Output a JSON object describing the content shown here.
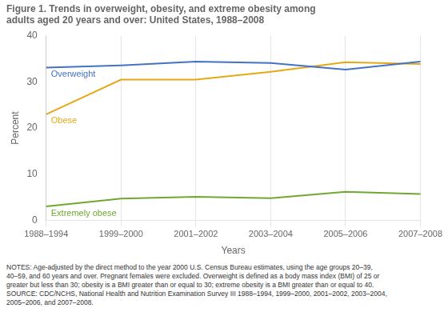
{
  "chart_data": {
    "type": "line",
    "title": [
      "Figure 1. Trends in overweight, obesity, and extreme obesity among",
      "adults aged 20 years and over: United States, 1988–2008"
    ],
    "xlabel": "Years",
    "ylabel": "Percent",
    "categories": [
      "1988–1994",
      "1999–2000",
      "2001–2002",
      "2003–2004",
      "2005–2006",
      "2007–2008"
    ],
    "series": [
      {
        "name": "Overweight",
        "color": "#4472C4",
        "values": [
          33.1,
          33.6,
          34.4,
          34.1,
          32.7,
          34.4
        ]
      },
      {
        "name": "Obese",
        "color": "#E6A817",
        "values": [
          23.0,
          30.5,
          30.5,
          32.2,
          34.3,
          33.9
        ]
      },
      {
        "name": "Extremely obese",
        "color": "#70A830",
        "values": [
          3.0,
          4.7,
          5.1,
          4.8,
          6.2,
          5.7
        ]
      }
    ],
    "ylim": [
      0,
      40
    ],
    "yticks": [
      0,
      10,
      20,
      30,
      40
    ],
    "grid": true,
    "notes": [
      "NOTES: Age-adjusted by the direct method to the year 2000 U.S. Census Bureau estimates, using the age groups 20–39,",
      "40–59, and 60 years and over. Pregnant females were excluded. Overweight is defined as a body mass index (BMI) of 25 or",
      "greater but less than 30; obesity is a BMI greater than or equal to 30; extreme obesity is a BMI greater than or equal to 40.",
      "SOURCE: CDC/NCHS, National Health and Nutrition Examination Survey III 1988–1994, 1999–2000, 2001–2002, 2003–2004,",
      "2005–2006, and 2007–2008."
    ]
  }
}
